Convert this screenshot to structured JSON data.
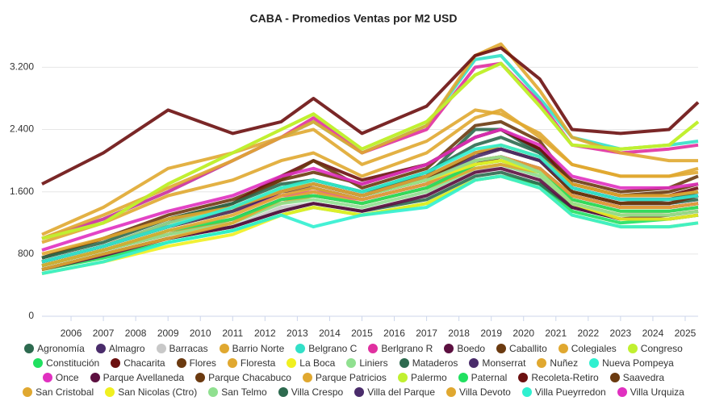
{
  "chart_data": {
    "type": "line",
    "title": "CABA - Promedios Ventas por M2 USD",
    "x": [
      2005.1,
      2007,
      2009,
      2011,
      2012.5,
      2013.5,
      2015,
      2017,
      2018.5,
      2019.3,
      2020.5,
      2021.5,
      2023,
      2024.5,
      2025.4
    ],
    "xlim": [
      2005.1,
      2025.4
    ],
    "xticks": [
      2006,
      2007,
      2008,
      2009,
      2010,
      2011,
      2012,
      2013,
      2014,
      2015,
      2016,
      2017,
      2018,
      2019,
      2020,
      2021,
      2022,
      2023,
      2024,
      2025
    ],
    "ylim": [
      0,
      3650
    ],
    "yticks": [
      0,
      800,
      {
        "value": 1600,
        "label": "1.600"
      },
      {
        "value": 2400,
        "label": "2.400"
      },
      {
        "value": 3200,
        "label": "3.200"
      }
    ],
    "grid": true,
    "series": [
      {
        "name": "Agronomía",
        "color": "#2d6a4f",
        "values": [
          700,
          900,
          1150,
          1350,
          1650,
          1750,
          1600,
          1800,
          2400,
          2400,
          2100,
          1600,
          1450,
          1450,
          1500
        ]
      },
      {
        "name": "Almagro",
        "color": "#4a2c6b",
        "values": [
          700,
          900,
          1150,
          1350,
          1600,
          1700,
          1550,
          1750,
          2050,
          2150,
          2000,
          1600,
          1450,
          1450,
          1550
        ]
      },
      {
        "name": "Barracas",
        "color": "#c8c8c8",
        "values": [
          600,
          800,
          1000,
          1150,
          1400,
          1450,
          1350,
          1550,
          1850,
          1950,
          1800,
          1450,
          1300,
          1350,
          1400
        ]
      },
      {
        "name": "Barrio Norte",
        "color": "#e0a830",
        "values": [
          1050,
          1400,
          1900,
          2100,
          2300,
          2400,
          1950,
          2250,
          2650,
          2600,
          2350,
          1950,
          1800,
          1800,
          1900
        ]
      },
      {
        "name": "Belgrano C",
        "color": "#33e0c8",
        "values": [
          1000,
          1250,
          1600,
          2000,
          2300,
          2500,
          2100,
          2450,
          3300,
          3350,
          2800,
          2300,
          2150,
          2200,
          2250
        ]
      },
      {
        "name": "Berlgrano R",
        "color": "#e030a0",
        "values": [
          1000,
          1250,
          1600,
          2000,
          2300,
          2550,
          2100,
          2400,
          3200,
          3250,
          2750,
          2200,
          2100,
          2150,
          2200
        ]
      },
      {
        "name": "Boedo",
        "color": "#5c1040",
        "values": [
          650,
          850,
          1050,
          1250,
          1500,
          1550,
          1450,
          1650,
          1950,
          2050,
          1900,
          1550,
          1400,
          1400,
          1450
        ]
      },
      {
        "name": "Caballito",
        "color": "#6b3a10",
        "values": [
          750,
          1000,
          1300,
          1500,
          1750,
          1850,
          1700,
          1950,
          2300,
          2400,
          2150,
          1750,
          1600,
          1650,
          1800
        ]
      },
      {
        "name": "Colegiales",
        "color": "#e0a830",
        "values": [
          950,
          1200,
          1550,
          1750,
          2000,
          2100,
          1800,
          2100,
          2550,
          2650,
          2300,
          1950,
          1800,
          1800,
          1850
        ]
      },
      {
        "name": "Congreso",
        "color": "#c0f030",
        "values": [
          1000,
          1200,
          1700,
          2100,
          2400,
          2600,
          2150,
          2500,
          3100,
          3250,
          2700,
          2200,
          2150,
          2200,
          2500
        ]
      },
      {
        "name": "Constitución",
        "color": "#20e060",
        "values": [
          600,
          750,
          950,
          1100,
          1300,
          1400,
          1300,
          1450,
          1750,
          1800,
          1700,
          1350,
          1200,
          1250,
          1300
        ]
      },
      {
        "name": "Chacarita",
        "color": "#6b1010",
        "values": [
          700,
          900,
          1200,
          1450,
          1800,
          2000,
          1750,
          1950,
          2300,
          2400,
          2150,
          1700,
          1550,
          1550,
          1650
        ]
      },
      {
        "name": "Flores",
        "color": "#6b3a10",
        "values": [
          700,
          900,
          1150,
          1350,
          1600,
          1700,
          1550,
          1750,
          2100,
          2150,
          2000,
          1600,
          1450,
          1450,
          1550
        ]
      },
      {
        "name": "Floresta",
        "color": "#e0a830",
        "values": [
          650,
          850,
          1050,
          1250,
          1450,
          1550,
          1450,
          1650,
          1950,
          2000,
          1850,
          1500,
          1350,
          1350,
          1400
        ]
      },
      {
        "name": "La Boca",
        "color": "#f0f020",
        "values": [
          550,
          700,
          900,
          1050,
          1300,
          1400,
          1300,
          1450,
          1750,
          1800,
          1650,
          1300,
          1150,
          1150,
          1200
        ]
      },
      {
        "name": "Liniers",
        "color": "#90e090",
        "values": [
          650,
          850,
          1050,
          1200,
          1450,
          1500,
          1400,
          1600,
          1900,
          1950,
          1800,
          1450,
          1300,
          1300,
          1350
        ]
      },
      {
        "name": "Mataderos",
        "color": "#2d6a4f",
        "values": [
          600,
          800,
          1000,
          1150,
          1350,
          1450,
          1350,
          1500,
          1800,
          1850,
          1700,
          1400,
          1250,
          1250,
          1300
        ]
      },
      {
        "name": "Monserrat",
        "color": "#4a2c6b",
        "values": [
          700,
          900,
          1150,
          1350,
          1600,
          1650,
          1500,
          1700,
          2000,
          2050,
          1900,
          1550,
          1400,
          1400,
          1450
        ]
      },
      {
        "name": "Nuñez",
        "color": "#e0a830",
        "values": [
          1000,
          1300,
          1650,
          2000,
          2300,
          2500,
          2100,
          2450,
          3350,
          3500,
          2900,
          2300,
          2100,
          2000,
          2000
        ]
      },
      {
        "name": "Nueva Pompeya",
        "color": "#30f0d0",
        "values": [
          550,
          700,
          950,
          1100,
          1300,
          1150,
          1300,
          1400,
          1750,
          1800,
          1650,
          1300,
          1150,
          1150,
          1200
        ]
      },
      {
        "name": "Once",
        "color": "#e030c0",
        "values": [
          700,
          900,
          1150,
          1350,
          1550,
          1600,
          1500,
          1700,
          2000,
          2050,
          1900,
          1550,
          1400,
          1400,
          1450
        ]
      },
      {
        "name": "Parque Avellaneda",
        "color": "#5c1040",
        "values": [
          600,
          780,
          1000,
          1150,
          1350,
          1450,
          1350,
          1550,
          1850,
          1900,
          1750,
          1400,
          1250,
          1300,
          1350
        ]
      },
      {
        "name": "Parque Chacabuco",
        "color": "#6b3a10",
        "values": [
          700,
          900,
          1150,
          1350,
          1600,
          1700,
          1550,
          1750,
          2100,
          2150,
          2000,
          1600,
          1450,
          1500,
          1550
        ]
      },
      {
        "name": "Parque Patricios",
        "color": "#e0a830",
        "values": [
          600,
          800,
          1000,
          1200,
          1500,
          1600,
          1450,
          1650,
          1900,
          1950,
          1850,
          1450,
          1300,
          1300,
          1350
        ]
      },
      {
        "name": "Palermo",
        "color": "#c0f030",
        "values": [
          1000,
          1200,
          1700,
          2100,
          2400,
          2600,
          2150,
          2500,
          3100,
          3250,
          2700,
          2200,
          2150,
          2200,
          2500
        ]
      },
      {
        "name": "Paternal",
        "color": "#20e060",
        "values": [
          650,
          850,
          1100,
          1250,
          1500,
          1550,
          1450,
          1650,
          1950,
          2000,
          1850,
          1500,
          1350,
          1350,
          1400
        ]
      },
      {
        "name": "Recoleta-Retiro",
        "color": "#6b1010",
        "values": [
          1700,
          2100,
          2650,
          2350,
          2500,
          2800,
          2350,
          2700,
          3350,
          3450,
          3050,
          2400,
          2350,
          2400,
          2750
        ]
      },
      {
        "name": "Saavedra",
        "color": "#6b3a10",
        "values": [
          750,
          1000,
          1250,
          1450,
          1750,
          2000,
          1650,
          1900,
          2450,
          2500,
          2250,
          1700,
          1550,
          1600,
          1700
        ]
      },
      {
        "name": "San Cristobal",
        "color": "#e0a830",
        "values": [
          650,
          850,
          1100,
          1300,
          1550,
          1650,
          1500,
          1700,
          2000,
          2050,
          1900,
          1550,
          1400,
          1400,
          1450
        ]
      },
      {
        "name": "San Nicolas (Ctro)",
        "color": "#f0f020",
        "values": [
          700,
          900,
          1150,
          1350,
          1650,
          1700,
          1550,
          1750,
          1950,
          2000,
          1850,
          1450,
          1250,
          1250,
          1300
        ]
      },
      {
        "name": "San Telmo",
        "color": "#90e090",
        "values": [
          700,
          900,
          1200,
          1400,
          1650,
          1700,
          1550,
          1750,
          2000,
          2050,
          1850,
          1450,
          1300,
          1300,
          1350
        ]
      },
      {
        "name": "Villa Crespo",
        "color": "#2d6a4f",
        "values": [
          750,
          950,
          1250,
          1450,
          1700,
          1750,
          1600,
          1850,
          2200,
          2300,
          2100,
          1650,
          1500,
          1500,
          1600
        ]
      },
      {
        "name": "Villa del Parque",
        "color": "#4a2c6b",
        "values": [
          700,
          900,
          1150,
          1350,
          1600,
          1700,
          1550,
          1800,
          2100,
          2150,
          2000,
          1650,
          1500,
          1500,
          1550
        ]
      },
      {
        "name": "Villa Devoto",
        "color": "#e0a830",
        "values": [
          800,
          1000,
          1250,
          1400,
          1600,
          1700,
          1550,
          1800,
          2100,
          2200,
          2050,
          1700,
          1550,
          1550,
          1600
        ]
      },
      {
        "name": "Villa Pueyrredon",
        "color": "#30f0d0",
        "values": [
          700,
          900,
          1150,
          1400,
          1650,
          1750,
          1600,
          1850,
          2150,
          2200,
          2050,
          1650,
          1500,
          1500,
          1550
        ]
      },
      {
        "name": "Villa Urquiza",
        "color": "#e030c0",
        "values": [
          850,
          1100,
          1350,
          1550,
          1800,
          1900,
          1700,
          1950,
          2300,
          2400,
          2200,
          1800,
          1650,
          1650,
          1700
        ]
      }
    ]
  }
}
